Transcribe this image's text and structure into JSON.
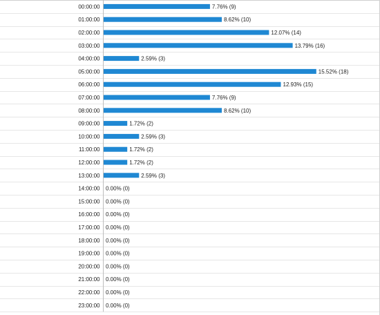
{
  "colors": {
    "bar": "#1f88d3",
    "grid": "#e6e6e6",
    "axis": "#bdbdbd",
    "text": "#222222"
  },
  "chart_data": {
    "type": "bar",
    "orientation": "horizontal",
    "grid": true,
    "categories": [
      "00:00:00",
      "01:00:00",
      "02:00:00",
      "03:00:00",
      "04:00:00",
      "05:00:00",
      "06:00:00",
      "07:00:00",
      "08:00:00",
      "09:00:00",
      "10:00:00",
      "11:00:00",
      "12:00:00",
      "13:00:00",
      "14:00:00",
      "15:00:00",
      "16:00:00",
      "17:00:00",
      "18:00:00",
      "19:00:00",
      "20:00:00",
      "21:00:00",
      "22:00:00",
      "23:00:00"
    ],
    "values": [
      9,
      10,
      14,
      16,
      3,
      18,
      15,
      9,
      10,
      2,
      3,
      2,
      2,
      3,
      0,
      0,
      0,
      0,
      0,
      0,
      0,
      0,
      0,
      0
    ],
    "percent": [
      7.76,
      8.62,
      12.07,
      13.79,
      2.59,
      15.52,
      12.93,
      7.76,
      8.62,
      1.72,
      2.59,
      1.72,
      1.72,
      2.59,
      0,
      0,
      0,
      0,
      0,
      0,
      0,
      0,
      0,
      0
    ],
    "data_labels": [
      "7.76% (9)",
      "8.62% (10)",
      "12.07% (14)",
      "13.79% (16)",
      "2.59% (3)",
      "15.52% (18)",
      "12.93% (15)",
      "7.76% (9)",
      "8.62% (10)",
      "1.72% (2)",
      "2.59% (3)",
      "1.72% (2)",
      "1.72% (2)",
      "2.59% (3)",
      "0.00% (0)",
      "0.00% (0)",
      "0.00% (0)",
      "0.00% (0)",
      "0.00% (0)",
      "0.00% (0)",
      "0.00% (0)",
      "0.00% (0)",
      "0.00% (0)",
      "0.00% (0)"
    ],
    "xlim": [
      0,
      18
    ]
  }
}
